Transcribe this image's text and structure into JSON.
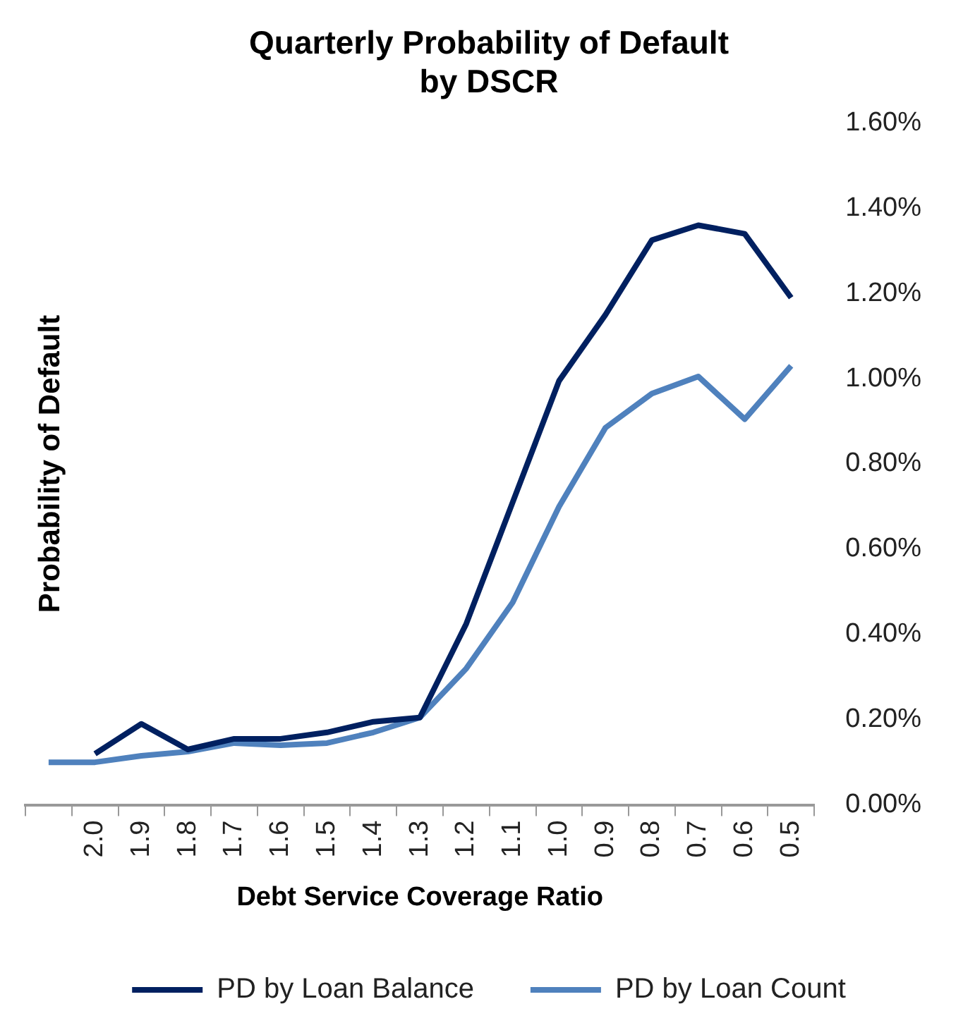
{
  "chart_data": {
    "type": "line",
    "title": "Quarterly Probability of Default\nby DSCR",
    "xlabel": "Debt Service Coverage Ratio",
    "ylabel": "Probability of Default",
    "categories": [
      null,
      "2.0",
      "1.9",
      "1.8",
      "1.7",
      "1.6",
      "1.5",
      "1.4",
      "1.3",
      "1.2",
      "1.1",
      "1.0",
      "0.9",
      "0.8",
      "0.7",
      "0.6",
      "0.5"
    ],
    "series": [
      {
        "name": "PD by Loan Balance",
        "color": "#002060",
        "values": [
          null,
          0.12,
          0.19,
          0.13,
          0.155,
          0.155,
          0.17,
          0.195,
          0.205,
          0.425,
          0.71,
          0.995,
          1.15,
          1.325,
          1.36,
          1.34,
          1.19
        ]
      },
      {
        "name": "PD by Loan Count",
        "color": "#4f81bd",
        "values": [
          0.1,
          0.1,
          0.115,
          0.125,
          0.145,
          0.14,
          0.145,
          0.17,
          0.205,
          0.32,
          0.475,
          0.7,
          0.885,
          0.965,
          1.005,
          0.905,
          1.03
        ]
      }
    ],
    "ylim": [
      0,
      1.6
    ],
    "yticks": [
      {
        "value": 0,
        "label": "0.00%"
      },
      {
        "value": 0.2,
        "label": "0.20%"
      },
      {
        "value": 0.4,
        "label": "0.40%"
      },
      {
        "value": 0.6,
        "label": "0.60%"
      },
      {
        "value": 0.8,
        "label": "0.80%"
      },
      {
        "value": 1.0,
        "label": "1.00%"
      },
      {
        "value": 1.2,
        "label": "1.20%"
      },
      {
        "value": 1.4,
        "label": "1.40%"
      },
      {
        "value": 1.6,
        "label": "1.60%"
      }
    ],
    "grid": false,
    "legend": "bottom",
    "marker": "none",
    "line_style": "solid"
  }
}
